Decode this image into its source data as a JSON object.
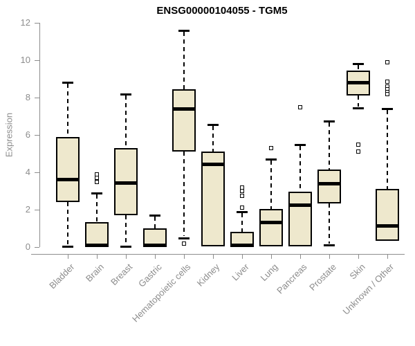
{
  "title": "ENSG00000104055 - TGM5",
  "colors": {
    "background": "#ffffff",
    "box_fill": "#EEE8CD",
    "box_border": "#000000",
    "median": "#000000",
    "whisker": "#000000",
    "outlier": "#000000",
    "axis": "#8c8c8c",
    "tick_label": "#8c8c8c",
    "title": "#000000"
  },
  "chart_data": {
    "type": "boxplot",
    "title": "ENSG00000104055 - TGM5",
    "xlabel": "",
    "ylabel": "Expression",
    "ylim": [
      0,
      12
    ],
    "y_ticks": [
      0,
      2,
      4,
      6,
      8,
      10,
      12
    ],
    "grid": false,
    "legend": false,
    "categories": [
      "Bladder",
      "Brain",
      "Breast",
      "Gastric",
      "Hematopoietic cells",
      "Kidney",
      "Liver",
      "Lung",
      "Pancreas",
      "Prostate",
      "Skin",
      "Unknown / Other"
    ],
    "series": [
      {
        "name": "Bladder",
        "whisker_low": 0.05,
        "q1": 2.4,
        "median": 3.65,
        "q3": 5.9,
        "whisker_high": 8.8,
        "outliers": []
      },
      {
        "name": "Brain",
        "whisker_low": 0.02,
        "q1": 0.02,
        "median": 0.1,
        "q3": 1.35,
        "whisker_high": 2.9,
        "outliers": [
          3.5,
          3.7,
          3.9
        ]
      },
      {
        "name": "Breast",
        "whisker_low": 0.05,
        "q1": 1.7,
        "median": 3.45,
        "q3": 5.3,
        "whisker_high": 8.2,
        "outliers": []
      },
      {
        "name": "Gastric",
        "whisker_low": 0.02,
        "q1": 0.02,
        "median": 0.1,
        "q3": 1.0,
        "whisker_high": 1.7,
        "outliers": []
      },
      {
        "name": "Hematopoietic cells",
        "whisker_low": 0.5,
        "q1": 5.1,
        "median": 7.4,
        "q3": 8.45,
        "whisker_high": 11.6,
        "outliers": [
          0.2
        ]
      },
      {
        "name": "Kidney",
        "whisker_low": 0.05,
        "q1": 0.05,
        "median": 4.45,
        "q3": 5.1,
        "whisker_high": 6.55,
        "outliers": []
      },
      {
        "name": "Liver",
        "whisker_low": 0.02,
        "q1": 0.02,
        "median": 0.1,
        "q3": 0.8,
        "whisker_high": 1.9,
        "outliers": [
          2.1,
          2.75,
          3.0,
          3.2
        ]
      },
      {
        "name": "Lung",
        "whisker_low": 0.05,
        "q1": 0.05,
        "median": 1.35,
        "q3": 2.05,
        "whisker_high": 4.7,
        "outliers": [
          5.3
        ]
      },
      {
        "name": "Pancreas",
        "whisker_low": 0.05,
        "q1": 0.05,
        "median": 2.25,
        "q3": 2.95,
        "whisker_high": 5.5,
        "outliers": [
          7.5
        ]
      },
      {
        "name": "Prostate",
        "whisker_low": 0.1,
        "q1": 2.35,
        "median": 3.4,
        "q3": 4.15,
        "whisker_high": 6.75,
        "outliers": []
      },
      {
        "name": "Skin",
        "whisker_low": 7.45,
        "q1": 8.1,
        "median": 8.8,
        "q3": 9.45,
        "whisker_high": 9.8,
        "outliers": [
          5.5,
          5.1
        ]
      },
      {
        "name": "Unknown / Other",
        "whisker_low": 0.35,
        "q1": 0.35,
        "median": 1.15,
        "q3": 3.1,
        "whisker_high": 7.4,
        "outliers": [
          9.9,
          8.85,
          8.6,
          8.45,
          8.3,
          8.2
        ]
      }
    ]
  }
}
